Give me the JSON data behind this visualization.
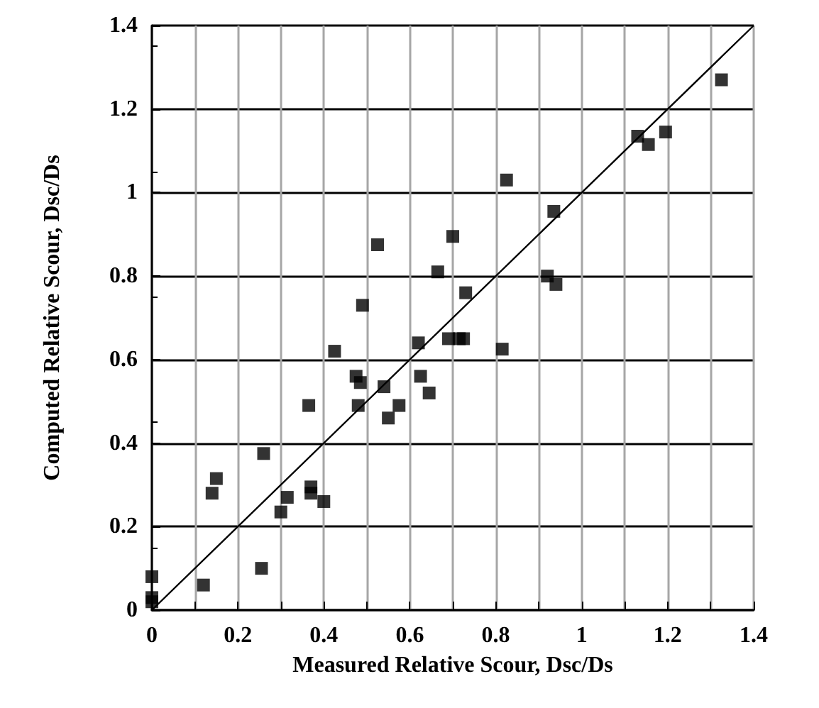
{
  "chart_data": {
    "type": "scatter",
    "xlabel": "Measured Relative Scour, Dsc/Ds",
    "ylabel": "Computed Relative Scour, Dsc/Ds",
    "xlim": [
      0,
      1.4
    ],
    "ylim": [
      0,
      1.4
    ],
    "xticks": [
      0,
      {
        "value": 0.1,
        "label": null
      },
      0.2,
      {
        "value": 0.3,
        "label": null
      },
      0.4,
      {
        "value": 0.5,
        "label": null
      },
      0.6,
      {
        "value": 0.7,
        "label": null
      },
      0.8,
      {
        "value": 0.9,
        "label": null
      },
      1,
      {
        "value": 1.1,
        "label": null
      },
      1.2,
      {
        "value": 1.3,
        "label": null
      },
      1.4
    ],
    "yticks": [
      0,
      0.2,
      0.4,
      0.6,
      0.8,
      1,
      1.2,
      1.4
    ],
    "grid": true,
    "marker": "square",
    "series": [
      {
        "color": "#000000",
        "x": [
          0,
          0,
          0,
          0.12,
          0.14,
          0.15,
          0.255,
          0.26,
          0.3,
          0.315,
          0.365,
          0.37,
          0.37,
          0.4,
          0.425,
          0.475,
          0.48,
          0.485,
          0.49,
          0.525,
          0.54,
          0.55,
          0.575,
          0.62,
          0.625,
          0.645,
          0.665,
          0.69,
          0.7,
          0.715,
          0.725,
          0.73,
          0.815,
          0.825,
          0.92,
          0.935,
          0.94,
          1.13,
          1.155,
          1.195,
          1.325
        ],
        "values": [
          0.08,
          0.03,
          0.02,
          0.06,
          0.28,
          0.315,
          0.1,
          0.375,
          0.235,
          0.27,
          0.49,
          0.28,
          0.295,
          0.26,
          0.62,
          0.56,
          0.49,
          0.545,
          0.73,
          0.875,
          0.535,
          0.46,
          0.49,
          0.64,
          0.56,
          0.52,
          0.81,
          0.65,
          0.895,
          0.65,
          0.65,
          0.76,
          0.625,
          1.03,
          0.8,
          0.955,
          0.78,
          1.135,
          1.115,
          1.145,
          1.27
        ]
      },
      {
        "type": "line",
        "color": "#000000",
        "x": [
          0,
          1.4
        ],
        "values": [
          0,
          1.4
        ],
        "marker": "none",
        "line_style": "solid"
      }
    ]
  }
}
